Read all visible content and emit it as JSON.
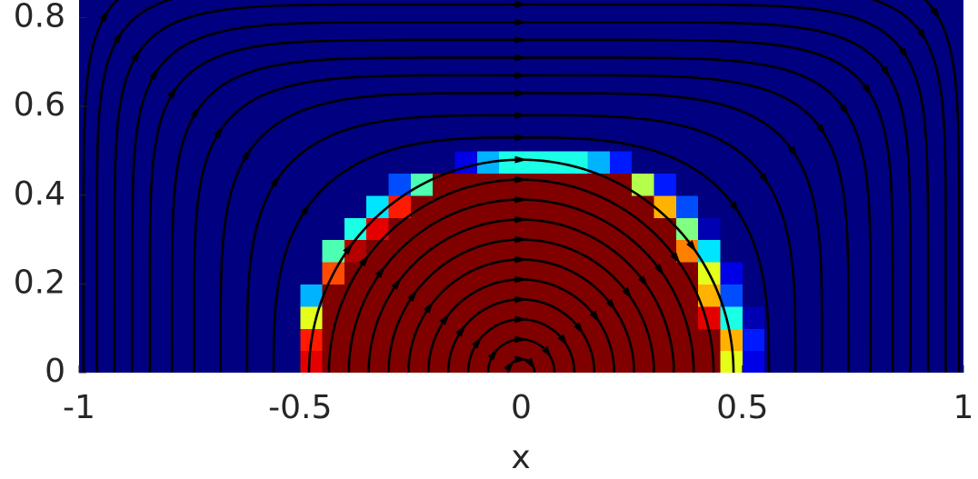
{
  "chart_data": {
    "type": "heatmap",
    "xlabel": "x",
    "xlim": [
      -1,
      1
    ],
    "ylim": [
      0,
      0.84
    ],
    "xticks": [
      -1,
      -0.5,
      0,
      0.5,
      1
    ],
    "yticks": [
      0,
      0.2,
      0.4,
      0.6,
      0.8
    ],
    "colormap": "jet",
    "clim": [
      0,
      1
    ],
    "z": [
      [
        0,
        0,
        0,
        0,
        0,
        0,
        0,
        0,
        0,
        0,
        0.9,
        1,
        1,
        1,
        1,
        1,
        1,
        1,
        1,
        1,
        1,
        1,
        1,
        1,
        1,
        1,
        1,
        1,
        1,
        0.6,
        0.1,
        0,
        0,
        0,
        0,
        0,
        0,
        0,
        0,
        0
      ],
      [
        0,
        0,
        0,
        0,
        0,
        0,
        0,
        0,
        0,
        0,
        0.85,
        1,
        1,
        1,
        1,
        1,
        1,
        1,
        1,
        1,
        1,
        1,
        1,
        1,
        1,
        1,
        1,
        1,
        1,
        0.7,
        0.15,
        0,
        0,
        0,
        0,
        0,
        0,
        0,
        0,
        0
      ],
      [
        0,
        0,
        0,
        0,
        0,
        0,
        0,
        0,
        0,
        0,
        0.6,
        1,
        1,
        1,
        1,
        1,
        1,
        1,
        1,
        1,
        1,
        1,
        1,
        1,
        1,
        1,
        1,
        1,
        0.9,
        0.4,
        0.05,
        0,
        0,
        0,
        0,
        0,
        0,
        0,
        0,
        0
      ],
      [
        0,
        0,
        0,
        0,
        0,
        0,
        0,
        0,
        0,
        0,
        0.3,
        1,
        1,
        1,
        1,
        1,
        1,
        1,
        1,
        1,
        1,
        1,
        1,
        1,
        1,
        1,
        1,
        1,
        0.7,
        0.2,
        0,
        0,
        0,
        0,
        0,
        0,
        0,
        0,
        0,
        0
      ],
      [
        0,
        0,
        0,
        0,
        0,
        0,
        0,
        0,
        0,
        0,
        0,
        0.8,
        1,
        1,
        1,
        1,
        1,
        1,
        1,
        1,
        1,
        1,
        1,
        1,
        1,
        1,
        1,
        1,
        0.6,
        0.1,
        0,
        0,
        0,
        0,
        0,
        0,
        0,
        0,
        0,
        0
      ],
      [
        0,
        0,
        0,
        0,
        0,
        0,
        0,
        0,
        0,
        0,
        0,
        0.45,
        0.95,
        1,
        1,
        1,
        1,
        1,
        1,
        1,
        1,
        1,
        1,
        1,
        1,
        1,
        1,
        0.75,
        0.35,
        0,
        0,
        0,
        0,
        0,
        0,
        0,
        0,
        0,
        0,
        0
      ],
      [
        0,
        0,
        0,
        0,
        0,
        0,
        0,
        0,
        0,
        0,
        0,
        0,
        0.4,
        0.9,
        1,
        1,
        1,
        1,
        1,
        1,
        1,
        1,
        1,
        1,
        1,
        1,
        1,
        0.5,
        0.05,
        0,
        0,
        0,
        0,
        0,
        0,
        0,
        0,
        0,
        0,
        0
      ],
      [
        0,
        0,
        0,
        0,
        0,
        0,
        0,
        0,
        0,
        0,
        0,
        0,
        0,
        0.35,
        0.85,
        1,
        1,
        1,
        1,
        1,
        1,
        1,
        1,
        1,
        1,
        1,
        0.7,
        0.2,
        0,
        0,
        0,
        0,
        0,
        0,
        0,
        0,
        0,
        0,
        0,
        0
      ],
      [
        0,
        0,
        0,
        0,
        0,
        0,
        0,
        0,
        0,
        0,
        0,
        0,
        0,
        0,
        0.2,
        0.45,
        1,
        1,
        1,
        1,
        1,
        1,
        1,
        1,
        1,
        0.55,
        0.15,
        0,
        0,
        0,
        0,
        0,
        0,
        0,
        0,
        0,
        0,
        0,
        0,
        0
      ],
      [
        0,
        0,
        0,
        0,
        0,
        0,
        0,
        0,
        0,
        0,
        0,
        0,
        0,
        0,
        0,
        0,
        0,
        0.1,
        0.3,
        0.4,
        0.4,
        0.4,
        0.4,
        0.3,
        0.15,
        0,
        0,
        0,
        0,
        0,
        0,
        0,
        0,
        0,
        0,
        0,
        0,
        0,
        0,
        0
      ],
      [
        0,
        0,
        0,
        0,
        0,
        0,
        0,
        0,
        0,
        0,
        0,
        0,
        0,
        0,
        0,
        0,
        0,
        0,
        0,
        0,
        0,
        0,
        0,
        0,
        0,
        0,
        0,
        0,
        0,
        0,
        0,
        0,
        0,
        0,
        0,
        0,
        0,
        0,
        0,
        0
      ],
      [
        0,
        0,
        0,
        0,
        0,
        0,
        0,
        0,
        0,
        0,
        0,
        0,
        0,
        0,
        0,
        0,
        0,
        0,
        0,
        0,
        0,
        0,
        0,
        0,
        0,
        0,
        0,
        0,
        0,
        0,
        0,
        0,
        0,
        0,
        0,
        0,
        0,
        0,
        0,
        0
      ],
      [
        0,
        0,
        0,
        0,
        0,
        0,
        0,
        0,
        0,
        0,
        0,
        0,
        0,
        0,
        0,
        0,
        0,
        0,
        0,
        0,
        0,
        0,
        0,
        0,
        0,
        0,
        0,
        0,
        0,
        0,
        0,
        0,
        0,
        0,
        0,
        0,
        0,
        0,
        0,
        0
      ],
      [
        0,
        0,
        0,
        0,
        0,
        0,
        0,
        0,
        0,
        0,
        0,
        0,
        0,
        0,
        0,
        0,
        0,
        0,
        0,
        0,
        0,
        0,
        0,
        0,
        0,
        0,
        0,
        0,
        0,
        0,
        0,
        0,
        0,
        0,
        0,
        0,
        0,
        0,
        0,
        0
      ],
      [
        0,
        0,
        0,
        0,
        0,
        0,
        0,
        0,
        0,
        0,
        0,
        0,
        0,
        0,
        0,
        0,
        0,
        0,
        0,
        0,
        0,
        0,
        0,
        0,
        0,
        0,
        0,
        0,
        0,
        0,
        0,
        0,
        0,
        0,
        0,
        0,
        0,
        0,
        0,
        0
      ],
      [
        0,
        0,
        0,
        0,
        0,
        0,
        0,
        0,
        0,
        0,
        0,
        0,
        0,
        0,
        0,
        0,
        0,
        0,
        0,
        0,
        0,
        0,
        0,
        0,
        0,
        0,
        0,
        0,
        0,
        0,
        0,
        0,
        0,
        0,
        0,
        0,
        0,
        0,
        0,
        0
      ],
      [
        0,
        0,
        0,
        0,
        0,
        0,
        0,
        0,
        0,
        0,
        0,
        0,
        0,
        0,
        0,
        0,
        0,
        0,
        0,
        0,
        0,
        0,
        0,
        0,
        0,
        0,
        0,
        0,
        0,
        0,
        0,
        0,
        0,
        0,
        0,
        0,
        0,
        0,
        0,
        0
      ]
    ],
    "streamlines": [
      {
        "a": 0.03,
        "b": 0.03
      },
      {
        "a": 0.075,
        "b": 0.075
      },
      {
        "a": 0.12,
        "b": 0.12
      },
      {
        "a": 0.165,
        "b": 0.165
      },
      {
        "a": 0.21,
        "b": 0.21
      },
      {
        "a": 0.255,
        "b": 0.255
      },
      {
        "a": 0.3,
        "b": 0.3
      },
      {
        "a": 0.345,
        "b": 0.345
      },
      {
        "a": 0.39,
        "b": 0.39
      },
      {
        "a": 0.435,
        "b": 0.435
      },
      {
        "a": 0.48,
        "b": 0.48
      },
      {
        "a": 0.56,
        "b": 0.53
      },
      {
        "a": 0.62,
        "b": 0.58
      },
      {
        "a": 0.68,
        "b": 0.63
      },
      {
        "a": 0.74,
        "b": 0.67
      },
      {
        "a": 0.79,
        "b": 0.71
      },
      {
        "a": 0.84,
        "b": 0.75
      },
      {
        "a": 0.88,
        "b": 0.79
      },
      {
        "a": 0.92,
        "b": 0.83
      },
      {
        "a": 0.96,
        "b": 0.87
      },
      {
        "a": 0.99,
        "b": 0.92
      }
    ],
    "streamline_color": "#000000"
  }
}
